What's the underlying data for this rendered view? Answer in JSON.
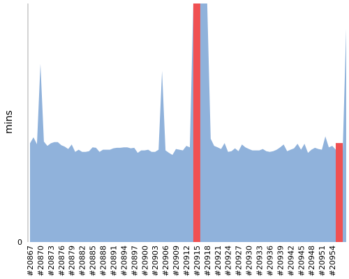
{
  "chart_data": {
    "type": "area",
    "title": "",
    "xlabel": "",
    "ylabel": "mins",
    "ylim": [
      0,
      100
    ],
    "y_ticks": [
      0
    ],
    "grid": false,
    "legend": "none",
    "colors": {
      "area": "#90b2db",
      "failed": "#f05052",
      "axis": "#aaaaaa"
    },
    "x_tick_labels": [
      "#20867",
      "#20870",
      "#20873",
      "#20876",
      "#20879",
      "#20882",
      "#20885",
      "#20888",
      "#20891",
      "#20894",
      "#20897",
      "#20900",
      "#20903",
      "#20906",
      "#20909",
      "#20912",
      "#20915",
      "#20918",
      "#20921",
      "#20924",
      "#20927",
      "#20930",
      "#20933",
      "#20936",
      "#20939",
      "#20942",
      "#20945",
      "#20948",
      "#20951",
      "#20954"
    ],
    "x_start": 20867,
    "x_end": 20957,
    "series": [
      {
        "values": [
          41.4,
          43.9,
          41.0,
          74.7,
          42.1,
          40.3,
          41.4,
          41.9,
          41.9,
          40.6,
          40.0,
          39.0,
          40.9,
          37.8,
          38.7,
          37.8,
          37.8,
          38.1,
          39.7,
          39.5,
          37.8,
          38.7,
          38.7,
          38.7,
          39.3,
          39.5,
          39.5,
          39.7,
          39.7,
          39.3,
          39.5,
          37.4,
          38.4,
          38.4,
          38.7,
          37.8,
          37.8,
          38.7,
          71.8,
          38.4,
          37.4,
          36.5,
          39.0,
          38.7,
          38.4,
          40.3,
          39.7,
          100,
          100,
          100,
          100,
          100,
          43.3,
          40.3,
          39.7,
          39.0,
          41.5,
          37.8,
          38.1,
          39.3,
          38.1,
          40.9,
          39.7,
          39.0,
          38.4,
          38.4,
          38.4,
          39.0,
          38.1,
          37.8,
          38.1,
          38.7,
          39.7,
          40.9,
          38.1,
          38.7,
          39.3,
          41.2,
          38.7,
          41.2,
          37.4,
          38.7,
          39.5,
          39.0,
          38.7,
          44.3,
          39.7,
          40.3,
          38.7,
          41.5,
          38.1,
          89.5
        ]
      }
    ],
    "failed_builds": [
      20915,
      20956
    ]
  }
}
